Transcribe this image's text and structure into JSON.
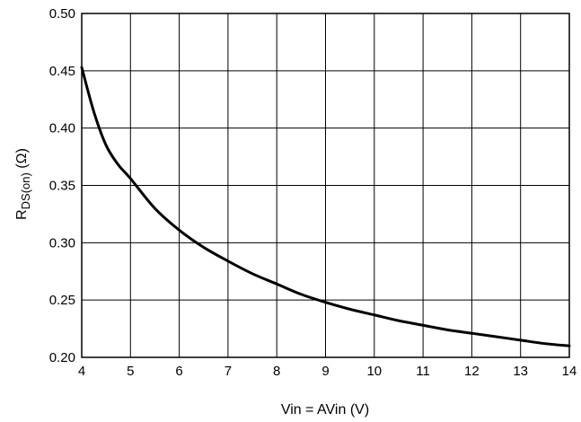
{
  "chart_data": {
    "type": "line",
    "title": "",
    "xlabel": "Vin = AVin (V)",
    "ylabel": {
      "main": "R",
      "subscript": "DS(on)",
      "unit": " (Ω)"
    },
    "xlim": [
      4,
      14
    ],
    "ylim": [
      0.2,
      0.5
    ],
    "x_ticks": [
      4,
      5,
      6,
      7,
      8,
      9,
      10,
      11,
      12,
      13,
      14
    ],
    "y_ticks": [
      0.2,
      0.25,
      0.3,
      0.35,
      0.4,
      0.45,
      0.5
    ],
    "x_tick_labels": [
      "4",
      "5",
      "6",
      "7",
      "8",
      "9",
      "10",
      "11",
      "12",
      "13",
      "14"
    ],
    "y_tick_labels": [
      "0.20",
      "0.25",
      "0.30",
      "0.35",
      "0.40",
      "0.45",
      "0.50"
    ],
    "grid": true,
    "series": [
      {
        "x": [
          4.0,
          4.25,
          4.5,
          4.75,
          5.0,
          5.5,
          6.0,
          6.5,
          7.0,
          7.5,
          8.0,
          8.5,
          9.0,
          9.5,
          10.0,
          10.5,
          11.0,
          11.5,
          12.0,
          12.5,
          13.0,
          13.5,
          14.0
        ],
        "y": [
          0.453,
          0.414,
          0.385,
          0.368,
          0.356,
          0.33,
          0.311,
          0.296,
          0.284,
          0.273,
          0.264,
          0.255,
          0.248,
          0.242,
          0.237,
          0.232,
          0.228,
          0.224,
          0.221,
          0.218,
          0.215,
          0.212,
          0.21
        ],
        "color": "#000000"
      }
    ]
  }
}
